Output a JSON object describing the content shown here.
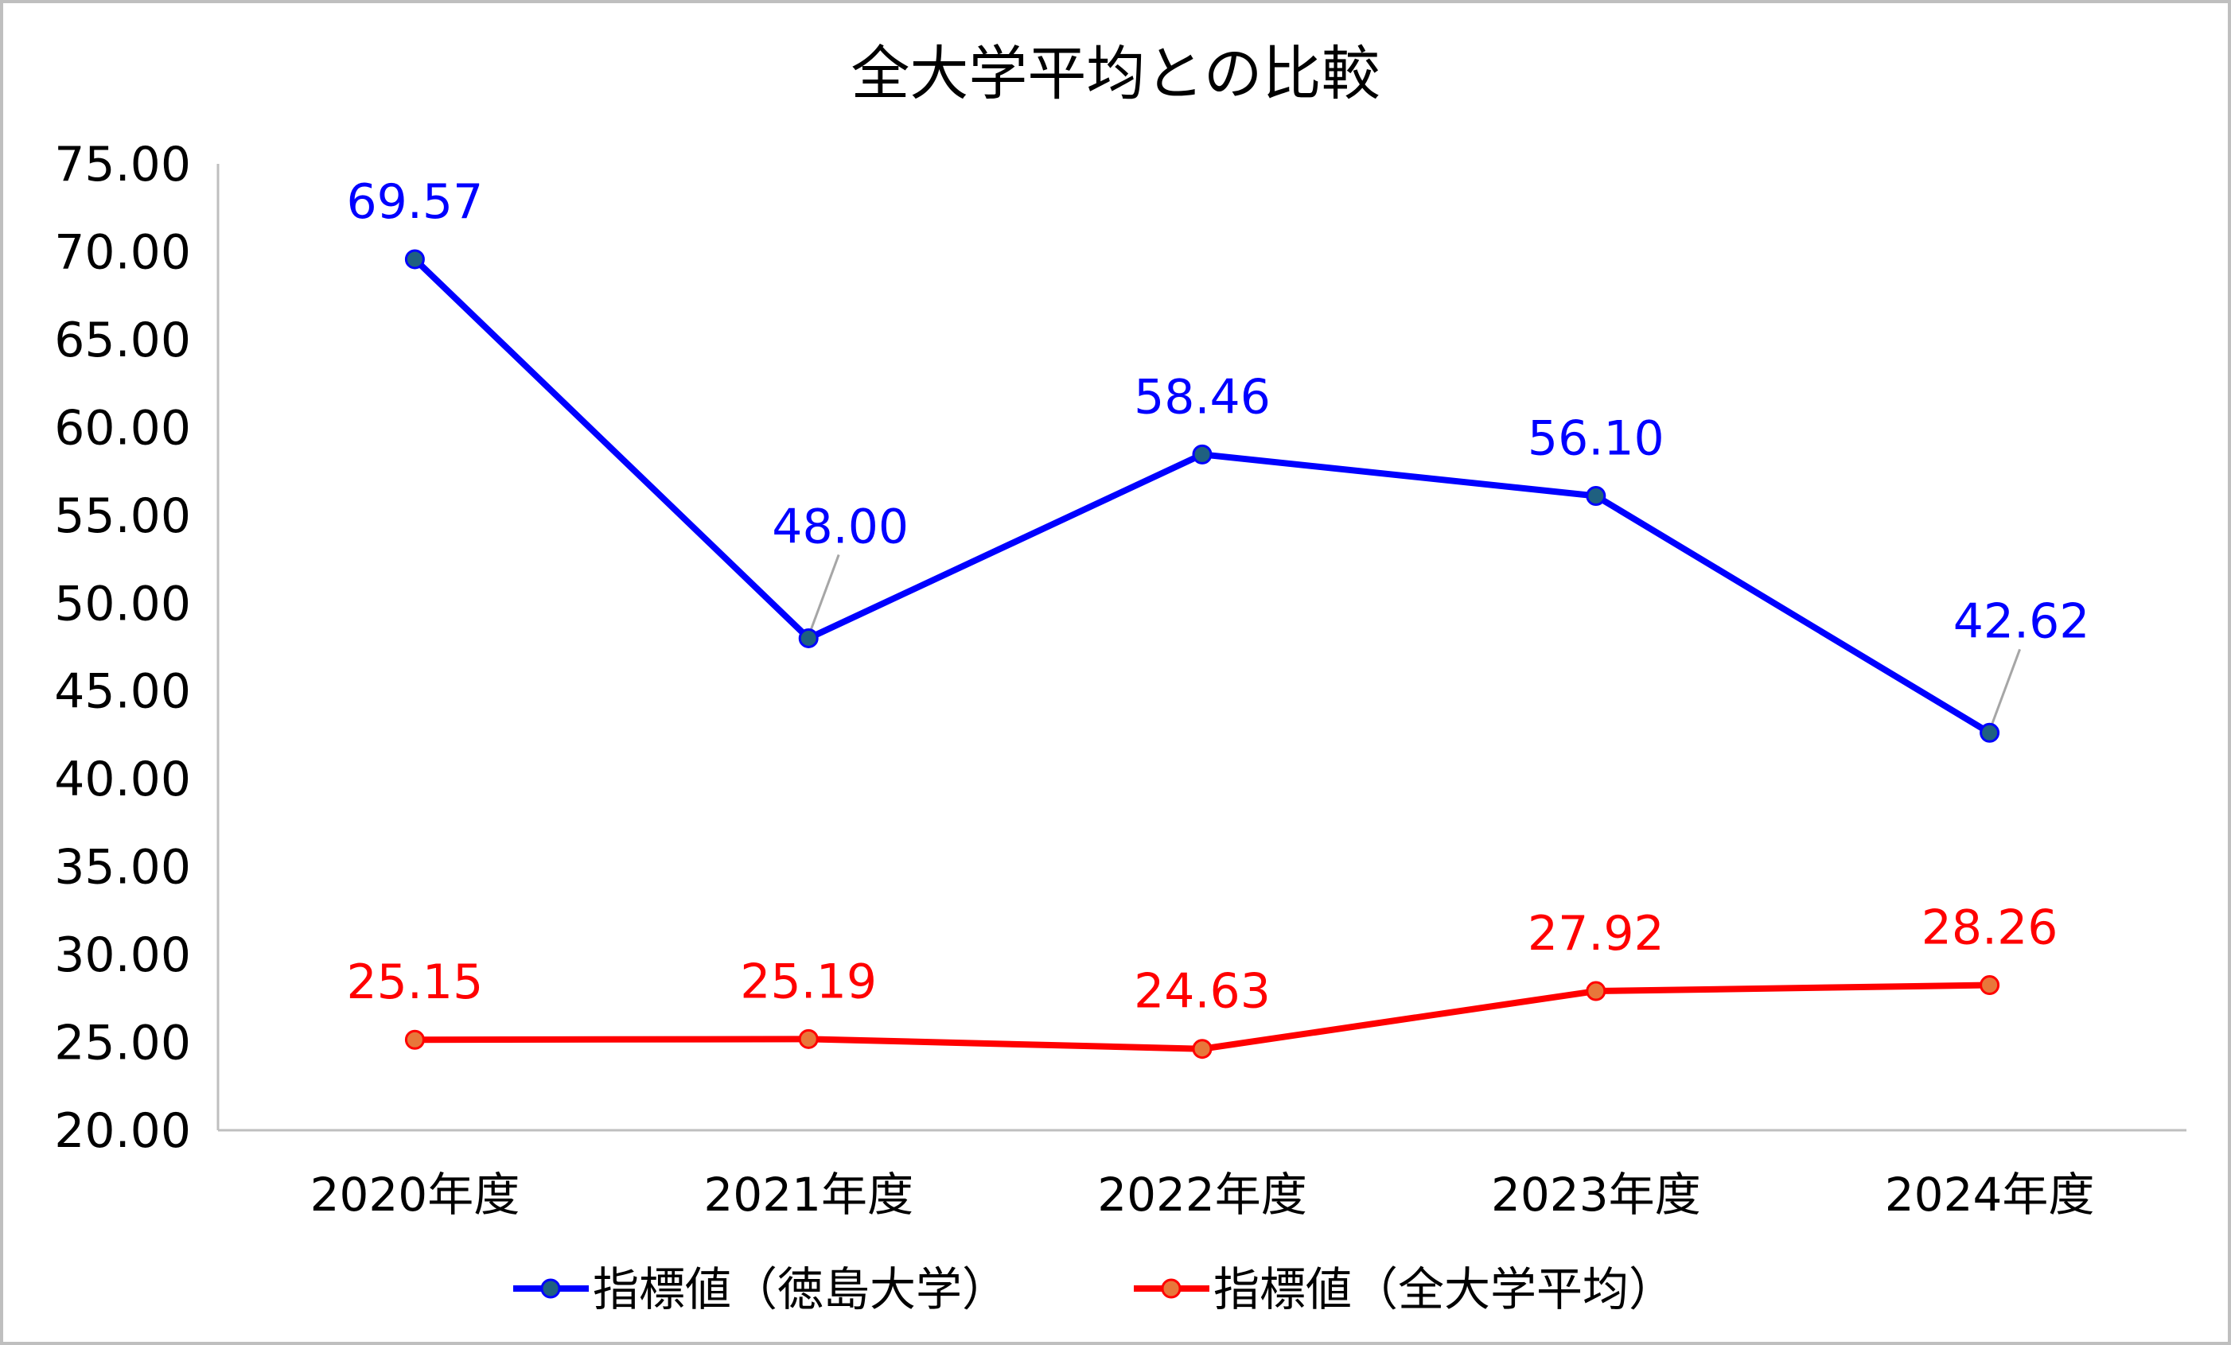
{
  "chart_data": {
    "type": "line",
    "title": "全大学平均との比較",
    "categories": [
      "2020年度",
      "2021年度",
      "2022年度",
      "2023年度",
      "2024年度"
    ],
    "ylim": [
      20,
      75
    ],
    "yticks": [
      "20.00",
      "25.00",
      "30.00",
      "35.00",
      "40.00",
      "45.00",
      "50.00",
      "55.00",
      "60.00",
      "65.00",
      "70.00",
      "75.00"
    ],
    "grid": false,
    "legend_position": "bottom",
    "series": [
      {
        "name": "指標値（徳島大学）",
        "values": [
          69.57,
          48.0,
          58.46,
          56.1,
          42.62
        ],
        "labels": [
          "69.57",
          "48.00",
          "58.46",
          "56.10",
          "42.62"
        ],
        "color": "#0000FF",
        "marker_fill": "#1F6080"
      },
      {
        "name": "指標値（全大学平均）",
        "values": [
          25.15,
          25.19,
          24.63,
          27.92,
          28.26
        ],
        "labels": [
          "25.15",
          "25.19",
          "24.63",
          "27.92",
          "28.26"
        ],
        "color": "#FF0000",
        "marker_fill": "#E8773A"
      }
    ]
  }
}
